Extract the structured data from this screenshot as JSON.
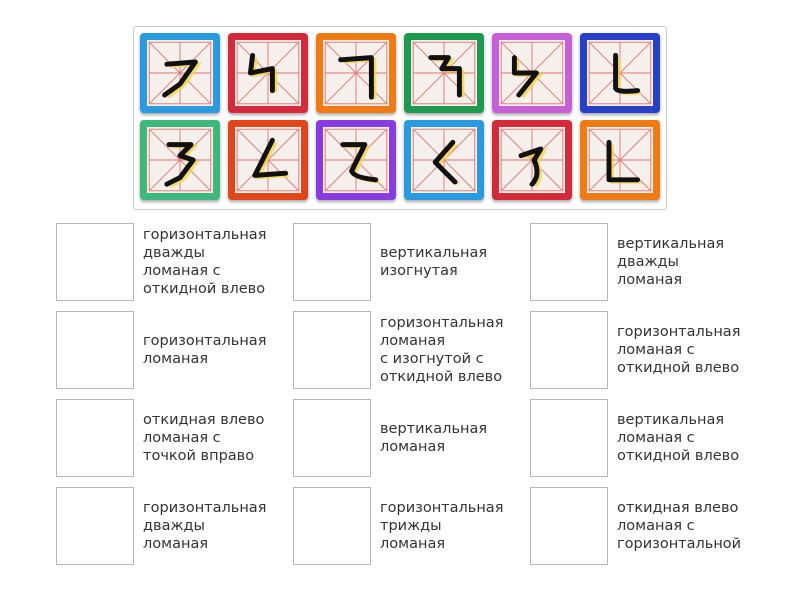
{
  "tiles": [
    {
      "color": "#2b9be0",
      "stroke": "horizontal-turn-left-falling"
    },
    {
      "color": "#d42a3a",
      "stroke": "vertical-turn-turn-hook"
    },
    {
      "color": "#f07b12",
      "stroke": "horizontal-turn"
    },
    {
      "color": "#1e9a4e",
      "stroke": "horizontal-turn-turn"
    },
    {
      "color": "#c75fd8",
      "stroke": "vertical-turn-turn-falling"
    },
    {
      "color": "#2740c8",
      "stroke": "vertical-curve"
    },
    {
      "color": "#3db87a",
      "stroke": "horizontal-turn-turn-turn-falling"
    },
    {
      "color": "#e0451c",
      "stroke": "falling-turn-dot"
    },
    {
      "color": "#8a3be0",
      "stroke": "horizontal-turn-curve"
    },
    {
      "color": "#2b9be0",
      "stroke": "falling-turn"
    },
    {
      "color": "#d42a3a",
      "stroke": "horizontal-falling-curve"
    },
    {
      "color": "#f07b12",
      "stroke": "vertical-turn"
    }
  ],
  "targets": [
    "горизонтальная\nдважды\nломаная с\nоткидной влево",
    "вертикальная\nизогнутая",
    "вертикальная\nдважды\nломаная",
    "горизонтальная\nломаная",
    "горизонтальная\nломаная\nс изогнутой с\nоткидной влево",
    "горизонтальная\nломаная с\nоткидной влево",
    "откидная влево\nломаная с\nточкой вправо",
    "вертикальная\nломаная",
    "вертикальная\nломаная с\nоткидной влево",
    "горизонтальная\nдважды\nломаная",
    "горизонтальная\nтрижды\nломаная",
    "откидная влево\nломаная с\nгоризонтальной"
  ]
}
